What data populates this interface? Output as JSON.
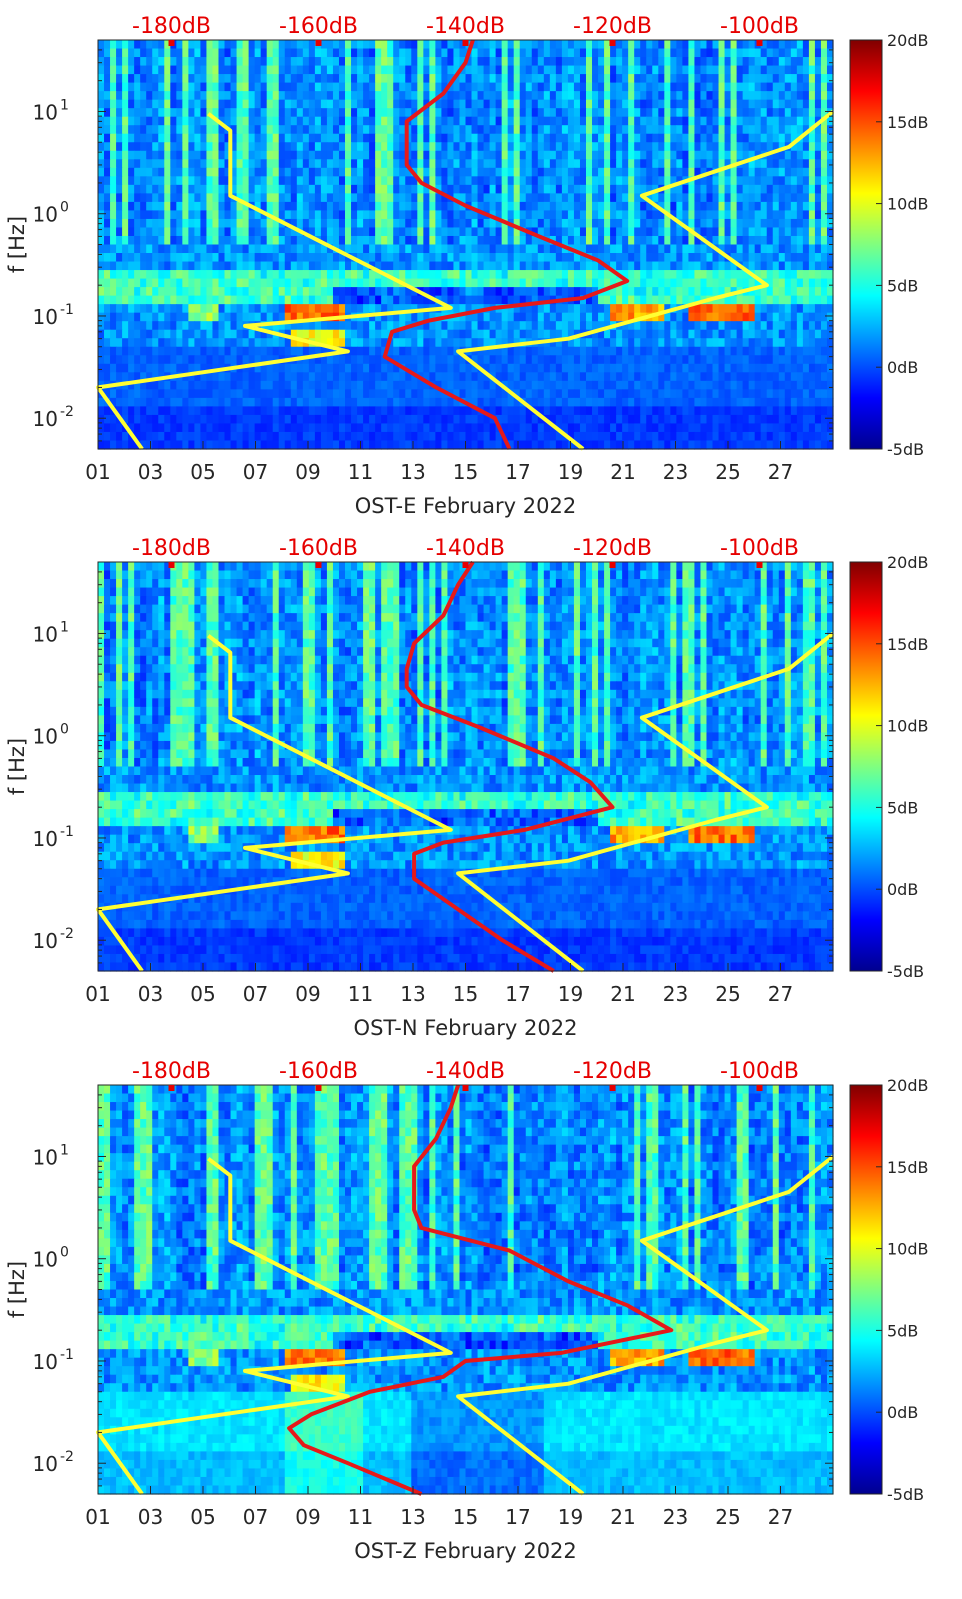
{
  "colors": {
    "spectrogram_colormap": "jet",
    "noise_model_curve": "#ffff33",
    "psd_percentile_curve": "#e61919",
    "top_axis_labels": "#e60000",
    "frame": "#262626"
  },
  "chart_data": [
    {
      "type": "heatmap",
      "panel": "OST-E",
      "xlabel": "OST-E February 2022",
      "ylabel": "f [Hz]",
      "x_tick_labels": [
        "01",
        "03",
        "05",
        "07",
        "09",
        "11",
        "13",
        "15",
        "17",
        "19",
        "21",
        "23",
        "25",
        "27"
      ],
      "xlim": [
        1,
        29
      ],
      "y_scale": "log",
      "ylim": [
        0.005,
        50
      ],
      "y_tick_labels": [
        {
          "value": 0.01,
          "base": "10",
          "exp": "-2"
        },
        {
          "value": 0.1,
          "base": "10",
          "exp": "-1"
        },
        {
          "value": 1,
          "base": "10",
          "exp": "0"
        },
        {
          "value": 10,
          "base": "10",
          "exp": "1"
        }
      ],
      "top_axis_labels": [
        "-180dB",
        "-160dB",
        "-140dB",
        "-120dB",
        "-100dB"
      ],
      "top_axis_range_db": [
        -190,
        -90
      ],
      "colorbar": {
        "labels": [
          "20dB",
          "15dB",
          "10dB",
          "5dB",
          "0dB",
          "-5dB"
        ],
        "range": [
          -5,
          20
        ],
        "colormap": "jet"
      },
      "series": [
        {
          "color": "#ffff33",
          "points": [
            [
              9.5,
              -175
            ],
            [
              6.5,
              -172
            ],
            [
              1.5,
              -172
            ],
            [
              0.12,
              -142
            ],
            [
              0.08,
              -170
            ],
            [
              0.045,
              -156
            ],
            [
              0.02,
              -190
            ],
            [
              0.005,
              -184
            ]
          ]
        },
        {
          "color": "#e61919",
          "points": [
            [
              50,
              -139
            ],
            [
              30,
              -140
            ],
            [
              15,
              -143
            ],
            [
              8,
              -148
            ],
            [
              4.5,
              -148
            ],
            [
              3,
              -148
            ],
            [
              2,
              -146
            ],
            [
              1.2,
              -140
            ],
            [
              0.6,
              -130
            ],
            [
              0.35,
              -122
            ],
            [
              0.22,
              -118
            ],
            [
              0.15,
              -124
            ],
            [
              0.12,
              -136
            ],
            [
              0.09,
              -145
            ],
            [
              0.07,
              -150
            ],
            [
              0.04,
              -151
            ],
            [
              0.02,
              -144
            ],
            [
              0.01,
              -136
            ],
            [
              0.005,
              -134
            ]
          ]
        },
        {
          "color": "#ffff33",
          "points": [
            [
              10,
              -90
            ],
            [
              4.5,
              -96
            ],
            [
              1.5,
              -116
            ],
            [
              0.2,
              -99
            ],
            [
              0.15,
              -106
            ],
            [
              0.06,
              -126
            ],
            [
              0.045,
              -141
            ],
            [
              0.005,
              -124
            ]
          ]
        }
      ]
    },
    {
      "type": "heatmap",
      "panel": "OST-N",
      "xlabel": "OST-N February 2022",
      "ylabel": "f [Hz]",
      "x_tick_labels": [
        "01",
        "03",
        "05",
        "07",
        "09",
        "11",
        "13",
        "15",
        "17",
        "19",
        "21",
        "23",
        "25",
        "27"
      ],
      "xlim": [
        1,
        29
      ],
      "y_scale": "log",
      "ylim": [
        0.005,
        50
      ],
      "y_tick_labels": [
        {
          "value": 0.01,
          "base": "10",
          "exp": "-2"
        },
        {
          "value": 0.1,
          "base": "10",
          "exp": "-1"
        },
        {
          "value": 1,
          "base": "10",
          "exp": "0"
        },
        {
          "value": 10,
          "base": "10",
          "exp": "1"
        }
      ],
      "top_axis_labels": [
        "-180dB",
        "-160dB",
        "-140dB",
        "-120dB",
        "-100dB"
      ],
      "top_axis_range_db": [
        -190,
        -90
      ],
      "colorbar": {
        "labels": [
          "20dB",
          "15dB",
          "10dB",
          "5dB",
          "0dB",
          "-5dB"
        ],
        "range": [
          -5,
          20
        ],
        "colormap": "jet"
      },
      "series": [
        {
          "color": "#ffff33",
          "points": [
            [
              9.5,
              -175
            ],
            [
              6.5,
              -172
            ],
            [
              1.5,
              -172
            ],
            [
              0.12,
              -142
            ],
            [
              0.08,
              -170
            ],
            [
              0.045,
              -156
            ],
            [
              0.02,
              -190
            ],
            [
              0.005,
              -184
            ]
          ]
        },
        {
          "color": "#e61919",
          "points": [
            [
              50,
              -139
            ],
            [
              30,
              -141
            ],
            [
              15,
              -143
            ],
            [
              8,
              -147
            ],
            [
              4.5,
              -148
            ],
            [
              3,
              -148
            ],
            [
              2,
              -146
            ],
            [
              1.2,
              -138
            ],
            [
              0.6,
              -128
            ],
            [
              0.35,
              -123
            ],
            [
              0.2,
              -120
            ],
            [
              0.12,
              -132
            ],
            [
              0.09,
              -143
            ],
            [
              0.07,
              -147
            ],
            [
              0.04,
              -147
            ],
            [
              0.02,
              -141
            ],
            [
              0.01,
              -135
            ],
            [
              0.005,
              -128
            ]
          ]
        },
        {
          "color": "#ffff33",
          "points": [
            [
              10,
              -90
            ],
            [
              4.5,
              -96
            ],
            [
              1.5,
              -116
            ],
            [
              0.2,
              -99
            ],
            [
              0.15,
              -106
            ],
            [
              0.06,
              -126
            ],
            [
              0.045,
              -141
            ],
            [
              0.005,
              -124
            ]
          ]
        }
      ]
    },
    {
      "type": "heatmap",
      "panel": "OST-Z",
      "xlabel": "OST-Z February 2022",
      "ylabel": "f [Hz]",
      "x_tick_labels": [
        "01",
        "03",
        "05",
        "07",
        "09",
        "11",
        "13",
        "15",
        "17",
        "19",
        "21",
        "23",
        "25",
        "27"
      ],
      "xlim": [
        1,
        29
      ],
      "y_scale": "log",
      "ylim": [
        0.005,
        50
      ],
      "y_tick_labels": [
        {
          "value": 0.01,
          "base": "10",
          "exp": "-2"
        },
        {
          "value": 0.1,
          "base": "10",
          "exp": "-1"
        },
        {
          "value": 1,
          "base": "10",
          "exp": "0"
        },
        {
          "value": 10,
          "base": "10",
          "exp": "1"
        }
      ],
      "top_axis_labels": [
        "-180dB",
        "-160dB",
        "-140dB",
        "-120dB",
        "-100dB"
      ],
      "top_axis_range_db": [
        -190,
        -90
      ],
      "colorbar": {
        "labels": [
          "20dB",
          "15dB",
          "10dB",
          "5dB",
          "0dB",
          "-5dB"
        ],
        "range": [
          -5,
          20
        ],
        "colormap": "jet"
      },
      "series": [
        {
          "color": "#ffff33",
          "points": [
            [
              9.5,
              -175
            ],
            [
              6.5,
              -172
            ],
            [
              1.5,
              -172
            ],
            [
              0.12,
              -142
            ],
            [
              0.08,
              -170
            ],
            [
              0.045,
              -156
            ],
            [
              0.02,
              -190
            ],
            [
              0.005,
              -184
            ]
          ]
        },
        {
          "color": "#e61919",
          "points": [
            [
              50,
              -141
            ],
            [
              30,
              -142
            ],
            [
              15,
              -144
            ],
            [
              8,
              -147
            ],
            [
              4.5,
              -147
            ],
            [
              3,
              -147
            ],
            [
              2,
              -146
            ],
            [
              1.2,
              -134
            ],
            [
              0.6,
              -126
            ],
            [
              0.35,
              -118
            ],
            [
              0.2,
              -112
            ],
            [
              0.12,
              -127
            ],
            [
              0.1,
              -140
            ],
            [
              0.07,
              -143
            ],
            [
              0.05,
              -153
            ],
            [
              0.03,
              -161
            ],
            [
              0.022,
              -164
            ],
            [
              0.015,
              -162
            ],
            [
              0.01,
              -156
            ],
            [
              0.005,
              -146
            ]
          ]
        },
        {
          "color": "#ffff33",
          "points": [
            [
              10,
              -90
            ],
            [
              4.5,
              -96
            ],
            [
              1.5,
              -116
            ],
            [
              0.2,
              -99
            ],
            [
              0.15,
              -106
            ],
            [
              0.06,
              -126
            ],
            [
              0.045,
              -141
            ],
            [
              0.005,
              -124
            ]
          ]
        }
      ]
    }
  ]
}
